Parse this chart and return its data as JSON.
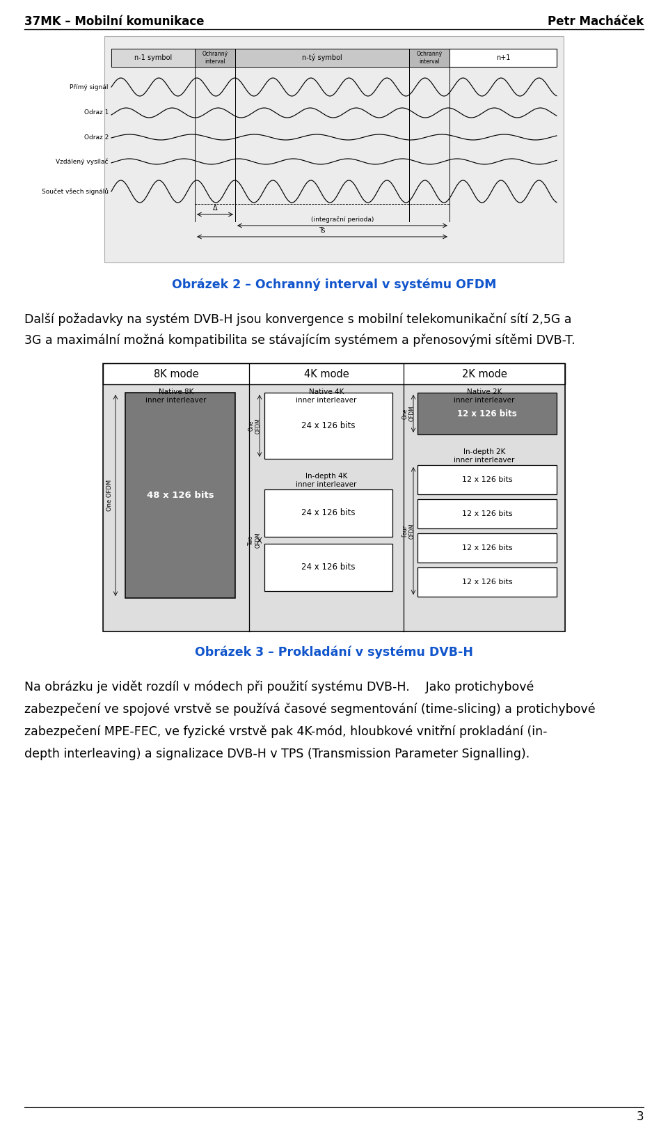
{
  "page_title_left": "37MK – Mobilní komunikace",
  "page_title_right": "Petr Macháček",
  "caption1": "Obrázek 2 – Ochranný interval v systému OFDM",
  "caption2": "Obrázek 3 – Prokladání v systému DVB-H",
  "para1_line1": "Další požadavky na systém DVB-H jsou konvergence s mobilní telekomunikační sítí 2,5G a",
  "para1_line2": "3G a maximální možná kompatibilita se stávajícím systémem a přenosovými sítěmi DVB-T.",
  "para2_line1": "Na obrázku je vidět rozdíl v módech při použití systému DVB-H.  Jako protichybové",
  "para2_line2": "zabezpečení ve spojové vrstvě se používá časové segmentování (time-slicing) a protichybové",
  "para2_line3": "zabezpečení MPE-FEC, ve fyzické vrstvě pak 4K-mód, hloubkové vnitřní prokladání (in-",
  "para2_line4": "depth interleaving) a signalizace DVB-H v TPS (Transmission Parameter Signalling).",
  "page_number": "3",
  "caption_color": "#1155cc",
  "bg_color": "#ffffff",
  "text_color": "#000000"
}
